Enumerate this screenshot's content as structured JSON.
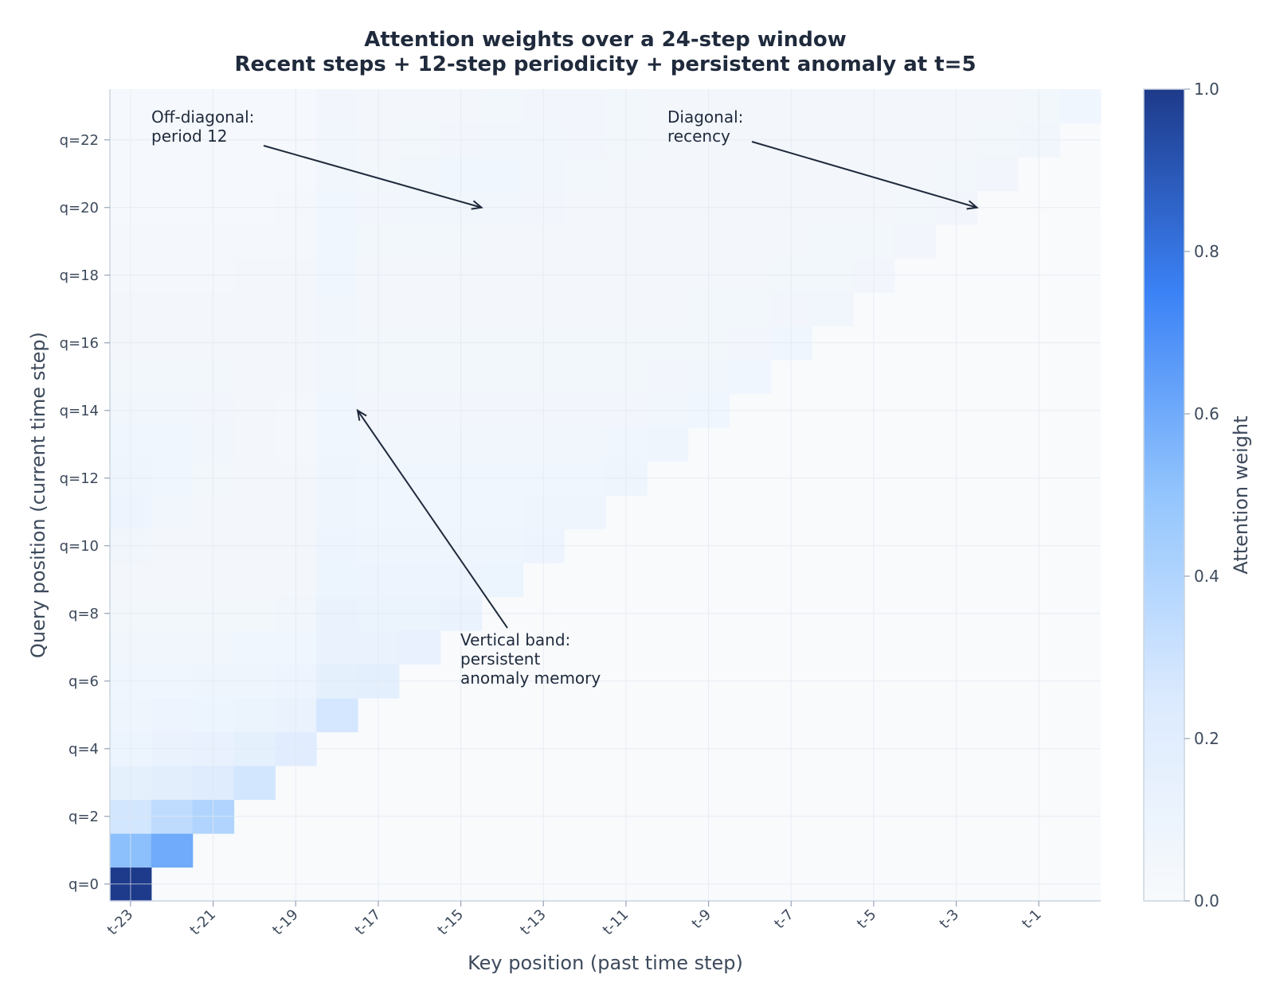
{
  "chart_data": {
    "type": "heatmap",
    "title": "Attention weights over a 24-step window",
    "subtitle": "Recent steps + 12-step periodicity + persistent anomaly at t=5",
    "xlabel": "Key position (past time step)",
    "ylabel": "Query position (current time step)",
    "colorbar_label": "Attention weight",
    "vlim": [
      0,
      1
    ],
    "colorbar_ticks": [
      "0.0",
      "0.2",
      "0.4",
      "0.6",
      "0.8",
      "1.0"
    ],
    "x_tick_labels": [
      "t-23",
      "t-21",
      "t-19",
      "t-17",
      "t-15",
      "t-13",
      "t-11",
      "t-9",
      "t-7",
      "t-5",
      "t-3",
      "t-1"
    ],
    "y_tick_labels": [
      "q=0",
      "q=2",
      "q=4",
      "q=6",
      "q=8",
      "q=10",
      "q=12",
      "q=14",
      "q=16",
      "q=18",
      "q=20",
      "q=22"
    ],
    "grid": true,
    "colormap": [
      "#f8fafc",
      "#dbeafe",
      "#93c5fd",
      "#3b82f6",
      "#1e3a8a"
    ],
    "annotations": [
      {
        "lines": [
          "Off-diagonal:",
          "period 12"
        ],
        "points_to": {
          "key": 8.5,
          "query": 20
        }
      },
      {
        "lines": [
          "Diagonal:",
          "recency"
        ],
        "points_to": {
          "key": 20.5,
          "query": 20
        }
      },
      {
        "lines": [
          "Vertical band:",
          "persistent",
          "anomaly memory"
        ],
        "points_to": {
          "key": 5.5,
          "query": 14
        }
      }
    ],
    "rows": [
      [
        1.0
      ],
      [
        0.52,
        0.6
      ],
      [
        0.28,
        0.35,
        0.4
      ],
      [
        0.16,
        0.18,
        0.22,
        0.28
      ],
      [
        0.1,
        0.12,
        0.14,
        0.16,
        0.2
      ],
      [
        0.08,
        0.09,
        0.1,
        0.11,
        0.13,
        0.27
      ],
      [
        0.07,
        0.07,
        0.08,
        0.08,
        0.09,
        0.16,
        0.17
      ],
      [
        0.06,
        0.06,
        0.06,
        0.07,
        0.07,
        0.13,
        0.13,
        0.14
      ],
      [
        0.05,
        0.05,
        0.05,
        0.05,
        0.06,
        0.12,
        0.11,
        0.11,
        0.12
      ],
      [
        0.04,
        0.04,
        0.045,
        0.045,
        0.045,
        0.1,
        0.09,
        0.09,
        0.09,
        0.1
      ],
      [
        0.06,
        0.04,
        0.04,
        0.04,
        0.04,
        0.09,
        0.08,
        0.08,
        0.08,
        0.08,
        0.09
      ],
      [
        0.09,
        0.06,
        0.04,
        0.04,
        0.04,
        0.08,
        0.07,
        0.07,
        0.07,
        0.07,
        0.08,
        0.085
      ],
      [
        0.08,
        0.07,
        0.05,
        0.04,
        0.04,
        0.075,
        0.065,
        0.065,
        0.065,
        0.065,
        0.065,
        0.07,
        0.08
      ],
      [
        0.07,
        0.065,
        0.06,
        0.04,
        0.035,
        0.07,
        0.06,
        0.06,
        0.06,
        0.06,
        0.06,
        0.06,
        0.065,
        0.075
      ],
      [
        0.06,
        0.06,
        0.055,
        0.045,
        0.035,
        0.065,
        0.055,
        0.055,
        0.055,
        0.055,
        0.055,
        0.055,
        0.055,
        0.06,
        0.07
      ],
      [
        0.05,
        0.05,
        0.05,
        0.045,
        0.04,
        0.06,
        0.05,
        0.05,
        0.05,
        0.05,
        0.05,
        0.05,
        0.05,
        0.055,
        0.06,
        0.07
      ],
      [
        0.045,
        0.045,
        0.045,
        0.045,
        0.04,
        0.06,
        0.048,
        0.048,
        0.048,
        0.048,
        0.048,
        0.048,
        0.048,
        0.05,
        0.05,
        0.055,
        0.065
      ],
      [
        0.04,
        0.04,
        0.04,
        0.04,
        0.04,
        0.06,
        0.045,
        0.045,
        0.045,
        0.045,
        0.045,
        0.045,
        0.045,
        0.045,
        0.05,
        0.05,
        0.055,
        0.06
      ],
      [
        0.035,
        0.035,
        0.035,
        0.04,
        0.04,
        0.065,
        0.045,
        0.045,
        0.045,
        0.045,
        0.042,
        0.042,
        0.042,
        0.042,
        0.045,
        0.045,
        0.05,
        0.05,
        0.055
      ],
      [
        0.035,
        0.035,
        0.035,
        0.035,
        0.035,
        0.065,
        0.05,
        0.05,
        0.05,
        0.045,
        0.04,
        0.04,
        0.04,
        0.04,
        0.042,
        0.042,
        0.045,
        0.05,
        0.05,
        0.055
      ],
      [
        0.03,
        0.03,
        0.03,
        0.03,
        0.035,
        0.065,
        0.055,
        0.06,
        0.06,
        0.06,
        0.055,
        0.04,
        0.04,
        0.04,
        0.04,
        0.04,
        0.045,
        0.045,
        0.045,
        0.05,
        0.055
      ],
      [
        0.03,
        0.03,
        0.03,
        0.03,
        0.03,
        0.06,
        0.05,
        0.06,
        0.065,
        0.065,
        0.06,
        0.05,
        0.04,
        0.04,
        0.04,
        0.04,
        0.04,
        0.04,
        0.04,
        0.045,
        0.05,
        0.055
      ],
      [
        0.03,
        0.03,
        0.03,
        0.03,
        0.03,
        0.06,
        0.045,
        0.05,
        0.055,
        0.06,
        0.06,
        0.055,
        0.05,
        0.04,
        0.04,
        0.04,
        0.04,
        0.04,
        0.04,
        0.04,
        0.045,
        0.05,
        0.06
      ],
      [
        0.03,
        0.03,
        0.03,
        0.03,
        0.03,
        0.055,
        0.04,
        0.045,
        0.045,
        0.05,
        0.055,
        0.055,
        0.05,
        0.045,
        0.04,
        0.04,
        0.04,
        0.04,
        0.04,
        0.04,
        0.04,
        0.045,
        0.05,
        0.065
      ]
    ]
  }
}
